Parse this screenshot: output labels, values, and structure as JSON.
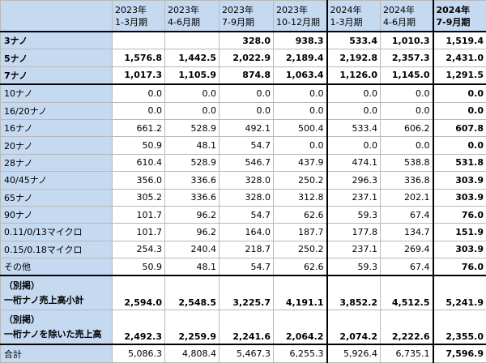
{
  "table": {
    "columns": [
      {
        "year": "2023年",
        "period": "1-3月期"
      },
      {
        "year": "2023年",
        "period": "4-6月期"
      },
      {
        "year": "2023年",
        "period": "7-9月期"
      },
      {
        "year": "2023年",
        "period": "10-12月期"
      },
      {
        "year": "2024年",
        "period": "1-3月期"
      },
      {
        "year": "2024年",
        "period": "4-6月期"
      },
      {
        "year": "2024年",
        "period": "7-9月期"
      }
    ],
    "rows": [
      {
        "label": "3ナノ",
        "values": [
          null,
          null,
          "328.0",
          "938.3",
          "533.4",
          "1,010.3",
          "1,519.4"
        ]
      },
      {
        "label": "5ナノ",
        "values": [
          "1,576.8",
          "1,442.5",
          "2,022.9",
          "2,189.4",
          "2,192.8",
          "2,357.3",
          "2,431.0"
        ]
      },
      {
        "label": "7ナノ",
        "values": [
          "1,017.3",
          "1,105.9",
          "874.8",
          "1,063.4",
          "1,126.0",
          "1,145.0",
          "1,291.5"
        ]
      },
      {
        "label": "10ナノ",
        "values": [
          "0.0",
          "0.0",
          "0.0",
          "0.0",
          "0.0",
          "0.0",
          "0.0"
        ]
      },
      {
        "label": "16/20ナノ",
        "values": [
          "0.0",
          "0.0",
          "0.0",
          "0.0",
          "0.0",
          "0.0",
          "0.0"
        ]
      },
      {
        "label": "16ナノ",
        "values": [
          "661.2",
          "528.9",
          "492.1",
          "500.4",
          "533.4",
          "606.2",
          "607.8"
        ]
      },
      {
        "label": "20ナノ",
        "values": [
          "50.9",
          "48.1",
          "54.7",
          "0.0",
          "0.0",
          "0.0",
          "0.0"
        ]
      },
      {
        "label": "28ナノ",
        "values": [
          "610.4",
          "528.9",
          "546.7",
          "437.9",
          "474.1",
          "538.8",
          "531.8"
        ]
      },
      {
        "label": "40/45ナノ",
        "values": [
          "356.0",
          "336.6",
          "328.0",
          "250.2",
          "296.3",
          "336.8",
          "303.9"
        ]
      },
      {
        "label": "65ナノ",
        "values": [
          "305.2",
          "336.6",
          "328.0",
          "312.8",
          "237.1",
          "202.1",
          "303.9"
        ]
      },
      {
        "label": "90ナノ",
        "values": [
          "101.7",
          "96.2",
          "54.7",
          "62.6",
          "59.3",
          "67.4",
          "76.0"
        ]
      },
      {
        "label": "0.11/0/13マイクロ",
        "values": [
          "101.7",
          "96.2",
          "164.0",
          "187.7",
          "177.8",
          "134.7",
          "151.9"
        ]
      },
      {
        "label": "0.15/0.18マイクロ",
        "values": [
          "254.3",
          "240.4",
          "218.7",
          "250.2",
          "237.1",
          "269.4",
          "303.9"
        ]
      },
      {
        "label": "その他",
        "values": [
          "50.9",
          "48.1",
          "54.7",
          "62.6",
          "59.3",
          "67.4",
          "76.0"
        ]
      },
      {
        "note": "（別掲）",
        "label": "一桁ナノ売上高小計",
        "values": [
          "2,594.0",
          "2,548.5",
          "3,225.7",
          "4,191.1",
          "3,852.2",
          "4,512.5",
          "5,241.9"
        ]
      },
      {
        "note": "（別掲）",
        "label": "一桁ナノを除いた売上高",
        "values": [
          "2,492.3",
          "2,259.9",
          "2,241.6",
          "2,064.2",
          "2,074.2",
          "2,222.6",
          "2,355.0"
        ]
      },
      {
        "label": "合計",
        "values": [
          "5,086.3",
          "4,808.4",
          "5,467.3",
          "6,255.3",
          "5,926.4",
          "6,735.1",
          "7,596.9"
        ]
      }
    ]
  }
}
